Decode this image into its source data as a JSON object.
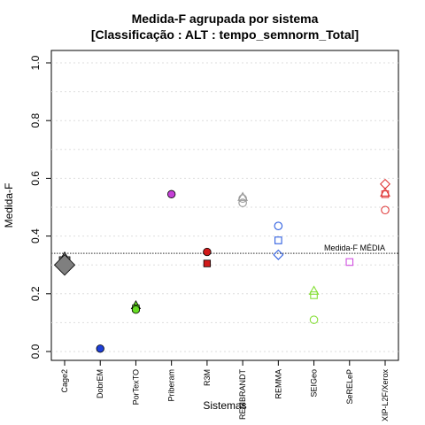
{
  "chart_data": {
    "type": "scatter",
    "title": "Medida-F agrupada por sistema",
    "subtitle": "[Classificação : ALT : tempo_semnorm_Total]",
    "xlabel": "Sistemas",
    "ylabel": "Medida-F",
    "ylim": [
      0,
      1
    ],
    "yticks": [
      "0.0",
      "0.2",
      "0.4",
      "0.6",
      "0.8",
      "1.0"
    ],
    "grid": true,
    "categories": [
      "Cage2",
      "DobrEM",
      "PorTexTO",
      "Priberam",
      "R3M",
      "REMBRANDT",
      "REMMA",
      "SEIGeo",
      "SeRELeP",
      "XIP-L2F/Xerox"
    ],
    "reference_line": {
      "value": 0.34,
      "label": "Medida-F MÉDIA",
      "color": "#555555"
    },
    "points": [
      {
        "category": "Cage2",
        "y": 0.32,
        "shape": "triangle",
        "color": "#7f7f7f",
        "filled": true,
        "size": 1.6
      },
      {
        "category": "Cage2",
        "y": 0.31,
        "shape": "square",
        "color": "#7f7f7f",
        "filled": true,
        "size": 1.6
      },
      {
        "category": "Cage2",
        "y": 0.3,
        "shape": "diamond",
        "color": "#7f7f7f",
        "filled": true,
        "size": 2.2
      },
      {
        "category": "DobrEM",
        "y": 0.01,
        "shape": "circle",
        "color": "#1e3fd8",
        "filled": true,
        "size": 1
      },
      {
        "category": "PorTexTO",
        "y": 0.16,
        "shape": "triangle",
        "color": "#66dd22",
        "filled": true,
        "size": 1
      },
      {
        "category": "PorTexTO",
        "y": 0.15,
        "shape": "square",
        "color": "#66dd22",
        "filled": true,
        "size": 1
      },
      {
        "category": "PorTexTO",
        "y": 0.145,
        "shape": "circle",
        "color": "#66dd22",
        "filled": true,
        "size": 1
      },
      {
        "category": "Priberam",
        "y": 0.545,
        "shape": "circle",
        "color": "#c43fd6",
        "filled": true,
        "size": 1
      },
      {
        "category": "R3M",
        "y": 0.345,
        "shape": "circle",
        "color": "#d11a1a",
        "filled": true,
        "size": 1
      },
      {
        "category": "R3M",
        "y": 0.305,
        "shape": "square",
        "color": "#d11a1a",
        "filled": true,
        "size": 1
      },
      {
        "category": "REMBRANDT",
        "y": 0.535,
        "shape": "triangle",
        "color": "#999999",
        "filled": false,
        "size": 1
      },
      {
        "category": "REMBRANDT",
        "y": 0.53,
        "shape": "circle",
        "color": "#999999",
        "filled": false,
        "size": 1
      },
      {
        "category": "REMBRANDT",
        "y": 0.515,
        "shape": "circle",
        "color": "#999999",
        "filled": false,
        "size": 1
      },
      {
        "category": "REMMA",
        "y": 0.435,
        "shape": "circle",
        "color": "#2f5fe0",
        "filled": false,
        "size": 1
      },
      {
        "category": "REMMA",
        "y": 0.385,
        "shape": "square",
        "color": "#2f5fe0",
        "filled": false,
        "size": 1
      },
      {
        "category": "REMMA",
        "y": 0.335,
        "shape": "diamond",
        "color": "#2f5fe0",
        "filled": false,
        "size": 1
      },
      {
        "category": "SEIGeo",
        "y": 0.21,
        "shape": "triangle",
        "color": "#88e03a",
        "filled": false,
        "size": 1
      },
      {
        "category": "SEIGeo",
        "y": 0.195,
        "shape": "square",
        "color": "#88e03a",
        "filled": false,
        "size": 1
      },
      {
        "category": "SEIGeo",
        "y": 0.11,
        "shape": "circle",
        "color": "#88e03a",
        "filled": false,
        "size": 1
      },
      {
        "category": "SeRELeP",
        "y": 0.31,
        "shape": "square",
        "color": "#d04ee0",
        "filled": false,
        "size": 1
      },
      {
        "category": "XIP-L2F/Xerox",
        "y": 0.58,
        "shape": "diamond",
        "color": "#e03a3a",
        "filled": false,
        "size": 1
      },
      {
        "category": "XIP-L2F/Xerox",
        "y": 0.55,
        "shape": "triangle",
        "color": "#e03a3a",
        "filled": false,
        "size": 1
      },
      {
        "category": "XIP-L2F/Xerox",
        "y": 0.545,
        "shape": "square",
        "color": "#e03a3a",
        "filled": false,
        "size": 1
      },
      {
        "category": "XIP-L2F/Xerox",
        "y": 0.49,
        "shape": "circle",
        "color": "#e03a3a",
        "filled": false,
        "size": 1
      }
    ]
  }
}
